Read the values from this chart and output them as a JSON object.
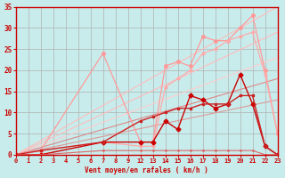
{
  "bg_color": "#c8ecec",
  "grid_color": "#b0b0b0",
  "axis_color": "#cc0000",
  "label_color": "#cc0000",
  "xlabel": "Vent moyen/en rafales ( km/h )",
  "xlim": [
    0,
    21
  ],
  "ylim": [
    0,
    35
  ],
  "xtick_positions": [
    0,
    1,
    2,
    3,
    4,
    5,
    6,
    7,
    8,
    9,
    10,
    11,
    12,
    13,
    14,
    15,
    16,
    17,
    18,
    19,
    20,
    21
  ],
  "xtick_labels": [
    "0",
    "1",
    "2",
    "3",
    "4",
    "5",
    "6",
    "7",
    "8",
    "9",
    "12",
    "13",
    "14",
    "15",
    "16",
    "17",
    "18",
    "19",
    "20",
    "21",
    "22",
    "23"
  ],
  "yticks": [
    0,
    5,
    10,
    15,
    20,
    25,
    30,
    35
  ],
  "ref_lines": [
    {
      "x": [
        0,
        21
      ],
      "y": [
        0,
        35
      ],
      "color": "#ffbbbb",
      "lw": 0.8
    },
    {
      "x": [
        0,
        21
      ],
      "y": [
        0,
        29
      ],
      "color": "#ffbbbb",
      "lw": 0.8
    },
    {
      "x": [
        0,
        21
      ],
      "y": [
        0,
        23
      ],
      "color": "#ffcccc",
      "lw": 0.8
    },
    {
      "x": [
        0,
        21
      ],
      "y": [
        0,
        18
      ],
      "color": "#dd8888",
      "lw": 0.8
    },
    {
      "x": [
        0,
        21
      ],
      "y": [
        0,
        13
      ],
      "color": "#dd9999",
      "lw": 0.8
    }
  ],
  "data_lines": [
    {
      "x": [
        0,
        2,
        7,
        10,
        11,
        12,
        13,
        14,
        15,
        16,
        17,
        18,
        19,
        20,
        21
      ],
      "y": [
        0,
        1,
        24,
        3,
        3,
        21,
        22,
        21,
        28,
        27,
        27,
        30,
        33,
        20,
        5
      ],
      "color": "#ff9999",
      "lw": 0.9,
      "marker": "o",
      "ms": 2.5
    },
    {
      "x": [
        0,
        2,
        7,
        10,
        11,
        12,
        13,
        14,
        15,
        16,
        17,
        18,
        19,
        20,
        21
      ],
      "y": [
        0,
        1,
        3,
        2,
        2,
        16,
        18,
        20,
        24,
        25,
        27,
        28,
        29,
        19,
        5
      ],
      "color": "#ffaaaa",
      "lw": 0.9,
      "marker": "o",
      "ms": 2.0
    },
    {
      "x": [
        0,
        2,
        7,
        10,
        11,
        12,
        13,
        14,
        15,
        16,
        17,
        18,
        19,
        20,
        21
      ],
      "y": [
        0,
        0,
        3,
        3,
        3,
        8,
        6,
        14,
        13,
        11,
        12,
        19,
        12,
        2,
        0
      ],
      "color": "#cc0000",
      "lw": 1.0,
      "marker": "D",
      "ms": 2.5
    },
    {
      "x": [
        0,
        2,
        7,
        10,
        11,
        12,
        13,
        14,
        15,
        16,
        17,
        18,
        19,
        20,
        21
      ],
      "y": [
        0,
        1,
        3,
        8,
        9,
        10,
        11,
        11,
        12,
        12,
        12,
        14,
        14,
        2,
        0
      ],
      "color": "#cc2222",
      "lw": 1.0,
      "marker": "s",
      "ms": 2.0
    },
    {
      "x": [
        0,
        2,
        7,
        10,
        11,
        12,
        13,
        14,
        15,
        16,
        17,
        18,
        19,
        20,
        21
      ],
      "y": [
        0,
        0,
        1,
        1,
        1,
        1,
        1,
        1,
        1,
        1,
        1,
        1,
        1,
        0,
        0
      ],
      "color": "#dd6666",
      "lw": 0.8,
      "marker": ".",
      "ms": 2
    }
  ]
}
